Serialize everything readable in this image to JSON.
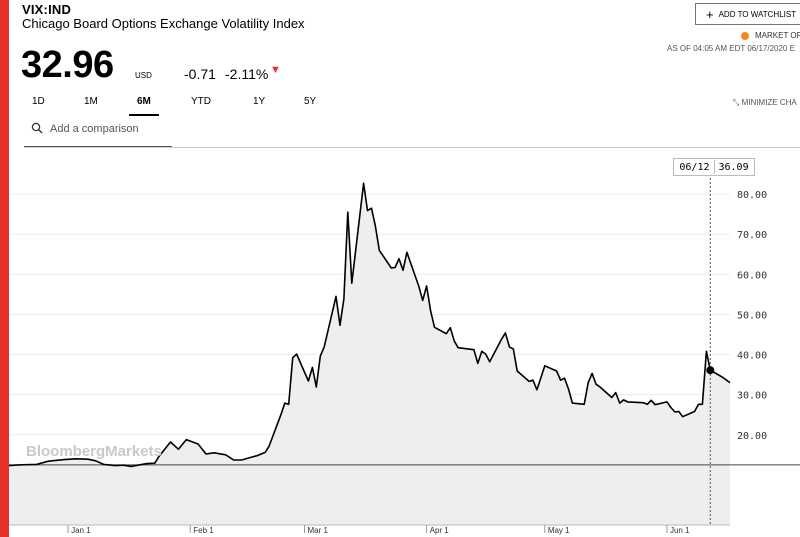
{
  "header": {
    "ticker": "VIX:IND",
    "name": "Chicago Board Options Exchange Volatility Index",
    "price": "32.96",
    "currency": "USD",
    "change": "-0.71",
    "change_pct": "-2.11%",
    "change_direction": "down",
    "down_color": "#e8302a"
  },
  "actions": {
    "watchlist_label": "ADD TO WATCHLIST",
    "market_status": "MARKET OP",
    "market_status_color": "#f28a1d",
    "as_of": "AS OF 04:05 AM EDT 06/17/2020 E",
    "minimize_label": "MINIMIZE CHA"
  },
  "tabs": [
    {
      "label": "1D"
    },
    {
      "label": "1M"
    },
    {
      "label": "6M",
      "active": true
    },
    {
      "label": "YTD"
    },
    {
      "label": "1Y"
    },
    {
      "label": "5Y"
    }
  ],
  "compare": {
    "placeholder": "Add a comparison"
  },
  "tooltip": {
    "date": "06/12",
    "value": "36.09"
  },
  "chart_data": {
    "type": "line",
    "title": "",
    "xlabel": "",
    "ylabel": "",
    "watermark": "BloombergMarkets",
    "ylim": [
      -2.5,
      91
    ],
    "yticks": [
      "20.00",
      "30.00",
      "40.00",
      "50.00",
      "60.00",
      "70.00",
      "80.00"
    ],
    "y_tick_values": [
      20,
      30,
      40,
      50,
      60,
      70,
      80
    ],
    "x_tick_labels": [
      "Jan 1",
      "Feb 1",
      "Mar 1",
      "Apr 1",
      "May 1",
      "Jun 1"
    ],
    "x_tick_dates": [
      "2020-01-01",
      "2020-02-01",
      "2020-03-01",
      "2020-04-01",
      "2020-05-01",
      "2020-06-01"
    ],
    "xlim": [
      "2019-12-17",
      "2020-06-17"
    ],
    "baseline": 12.5,
    "grid": true,
    "line_color": "#000000",
    "fill_color": "#eeeeee",
    "highlight": {
      "date": "2020-06-12",
      "value": 36.09
    },
    "series": [
      {
        "points": [
          [
            "2019-12-17",
            12.3
          ],
          [
            "2019-12-20",
            12.5
          ],
          [
            "2019-12-24",
            12.6
          ],
          [
            "2019-12-27",
            13.4
          ],
          [
            "2019-12-31",
            13.8
          ],
          [
            "2020-01-03",
            14.0
          ],
          [
            "2020-01-06",
            13.9
          ],
          [
            "2020-01-08",
            13.5
          ],
          [
            "2020-01-10",
            12.6
          ],
          [
            "2020-01-13",
            12.3
          ],
          [
            "2020-01-15",
            12.4
          ],
          [
            "2020-01-17",
            12.1
          ],
          [
            "2020-01-21",
            12.8
          ],
          [
            "2020-01-23",
            12.9
          ],
          [
            "2020-01-24",
            14.5
          ],
          [
            "2020-01-27",
            18.2
          ],
          [
            "2020-01-29",
            16.4
          ],
          [
            "2020-01-31",
            18.8
          ],
          [
            "2020-02-03",
            17.7
          ],
          [
            "2020-02-05",
            15.2
          ],
          [
            "2020-02-07",
            15.5
          ],
          [
            "2020-02-10",
            15.0
          ],
          [
            "2020-02-12",
            13.7
          ],
          [
            "2020-02-14",
            13.7
          ],
          [
            "2020-02-18",
            14.8
          ],
          [
            "2020-02-20",
            15.6
          ],
          [
            "2020-02-21",
            17.1
          ],
          [
            "2020-02-24",
            25.0
          ],
          [
            "2020-02-25",
            27.9
          ],
          [
            "2020-02-26",
            27.6
          ],
          [
            "2020-02-27",
            39.2
          ],
          [
            "2020-02-28",
            40.1
          ],
          [
            "2020-03-02",
            33.4
          ],
          [
            "2020-03-03",
            36.8
          ],
          [
            "2020-03-04",
            31.9
          ],
          [
            "2020-03-05",
            39.6
          ],
          [
            "2020-03-06",
            41.9
          ],
          [
            "2020-03-09",
            54.5
          ],
          [
            "2020-03-10",
            47.3
          ],
          [
            "2020-03-11",
            53.9
          ],
          [
            "2020-03-12",
            75.5
          ],
          [
            "2020-03-13",
            57.8
          ],
          [
            "2020-03-16",
            82.7
          ],
          [
            "2020-03-17",
            75.9
          ],
          [
            "2020-03-18",
            76.5
          ],
          [
            "2020-03-19",
            72.0
          ],
          [
            "2020-03-20",
            66.0
          ],
          [
            "2020-03-23",
            61.6
          ],
          [
            "2020-03-24",
            61.7
          ],
          [
            "2020-03-25",
            63.9
          ],
          [
            "2020-03-26",
            61.0
          ],
          [
            "2020-03-27",
            65.5
          ],
          [
            "2020-03-30",
            57.1
          ],
          [
            "2020-03-31",
            53.5
          ],
          [
            "2020-04-01",
            57.1
          ],
          [
            "2020-04-02",
            50.9
          ],
          [
            "2020-04-03",
            46.8
          ],
          [
            "2020-04-06",
            45.2
          ],
          [
            "2020-04-07",
            46.7
          ],
          [
            "2020-04-08",
            43.4
          ],
          [
            "2020-04-09",
            41.7
          ],
          [
            "2020-04-13",
            41.2
          ],
          [
            "2020-04-14",
            37.8
          ],
          [
            "2020-04-15",
            40.8
          ],
          [
            "2020-04-16",
            40.1
          ],
          [
            "2020-04-17",
            38.2
          ],
          [
            "2020-04-20",
            43.8
          ],
          [
            "2020-04-21",
            45.4
          ],
          [
            "2020-04-22",
            41.9
          ],
          [
            "2020-04-23",
            41.4
          ],
          [
            "2020-04-24",
            35.9
          ],
          [
            "2020-04-27",
            33.3
          ],
          [
            "2020-04-28",
            33.6
          ],
          [
            "2020-04-29",
            31.2
          ],
          [
            "2020-04-30",
            34.2
          ],
          [
            "2020-05-01",
            37.2
          ],
          [
            "2020-05-04",
            35.9
          ],
          [
            "2020-05-05",
            33.6
          ],
          [
            "2020-05-06",
            34.1
          ],
          [
            "2020-05-07",
            31.4
          ],
          [
            "2020-05-08",
            27.9
          ],
          [
            "2020-05-11",
            27.6
          ],
          [
            "2020-05-12",
            33.0
          ],
          [
            "2020-05-13",
            35.3
          ],
          [
            "2020-05-14",
            32.6
          ],
          [
            "2020-05-15",
            31.9
          ],
          [
            "2020-05-18",
            29.3
          ],
          [
            "2020-05-19",
            30.5
          ],
          [
            "2020-05-20",
            27.9
          ],
          [
            "2020-05-21",
            28.7
          ],
          [
            "2020-05-22",
            28.2
          ],
          [
            "2020-05-26",
            28.0
          ],
          [
            "2020-05-27",
            27.6
          ],
          [
            "2020-05-28",
            28.6
          ],
          [
            "2020-05-29",
            27.5
          ],
          [
            "2020-06-01",
            28.2
          ],
          [
            "2020-06-02",
            26.8
          ],
          [
            "2020-06-03",
            25.7
          ],
          [
            "2020-06-04",
            25.8
          ],
          [
            "2020-06-05",
            24.5
          ],
          [
            "2020-06-08",
            25.8
          ],
          [
            "2020-06-09",
            27.6
          ],
          [
            "2020-06-10",
            27.6
          ],
          [
            "2020-06-11",
            40.8
          ],
          [
            "2020-06-12",
            36.09
          ],
          [
            "2020-06-15",
            34.4
          ],
          [
            "2020-06-16",
            33.7
          ],
          [
            "2020-06-17",
            32.96
          ]
        ]
      }
    ]
  }
}
